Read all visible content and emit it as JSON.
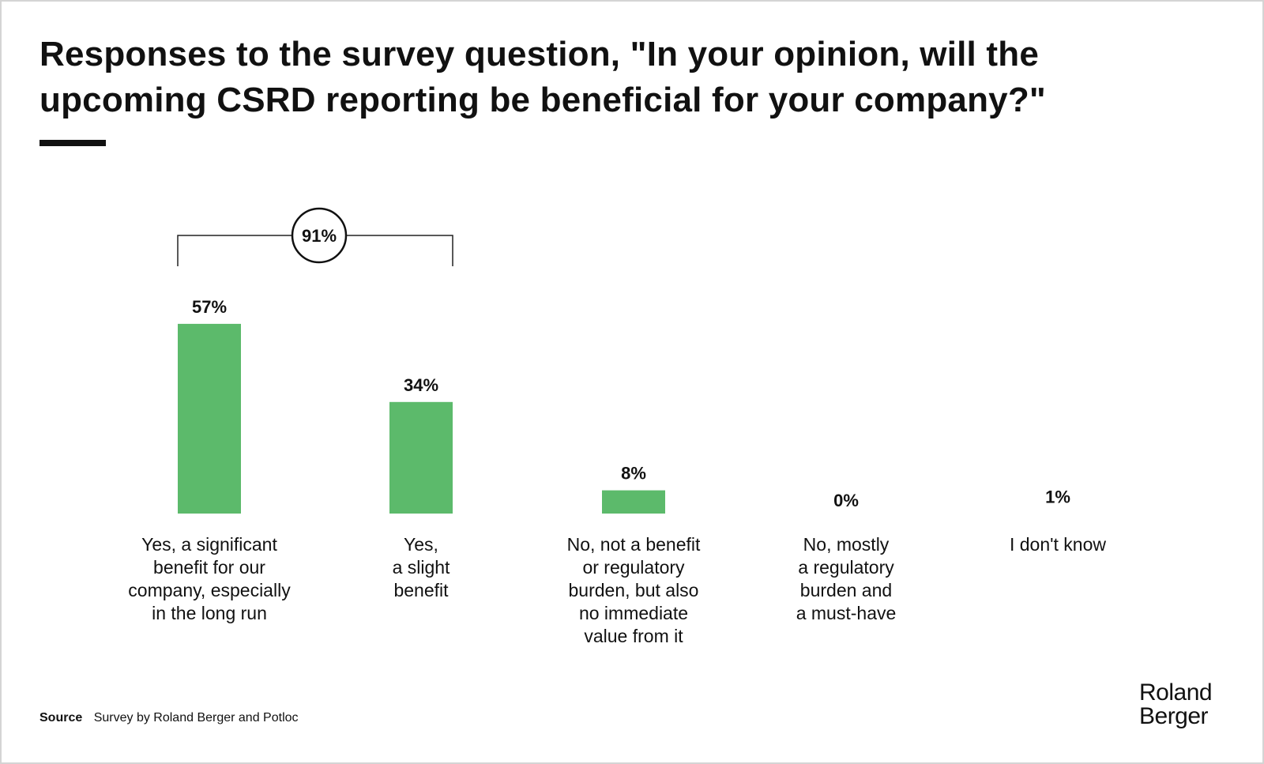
{
  "chart_data": {
    "type": "bar",
    "title": "Responses to the survey question, \"In your opinion, will the upcoming CSRD reporting be beneficial for your company?\"",
    "categories": [
      "Yes, a significant\nbenefit for our\ncompany, especially\nin the long run",
      "Yes,\na slight\nbenefit",
      "No, not a benefit\nor regulatory\nburden, but also\nno immediate\nvalue from it",
      "No, mostly\na regulatory\nburden and\na must-have",
      "I don't know"
    ],
    "values": [
      57,
      34,
      8,
      0,
      1
    ],
    "data_labels": [
      "57%",
      "34%",
      "8%",
      "0%",
      "1%"
    ],
    "unit": "%",
    "ylim": [
      0,
      60
    ],
    "grid": false,
    "bar_color": "#5cba6b",
    "annotation": {
      "label": "91%",
      "spans_categories": [
        0,
        1
      ]
    }
  },
  "footer": {
    "source_label": "Source",
    "source_text": "Survey by Roland Berger and Potloc"
  },
  "logo": {
    "line1": "Roland",
    "line2": "Berger"
  }
}
